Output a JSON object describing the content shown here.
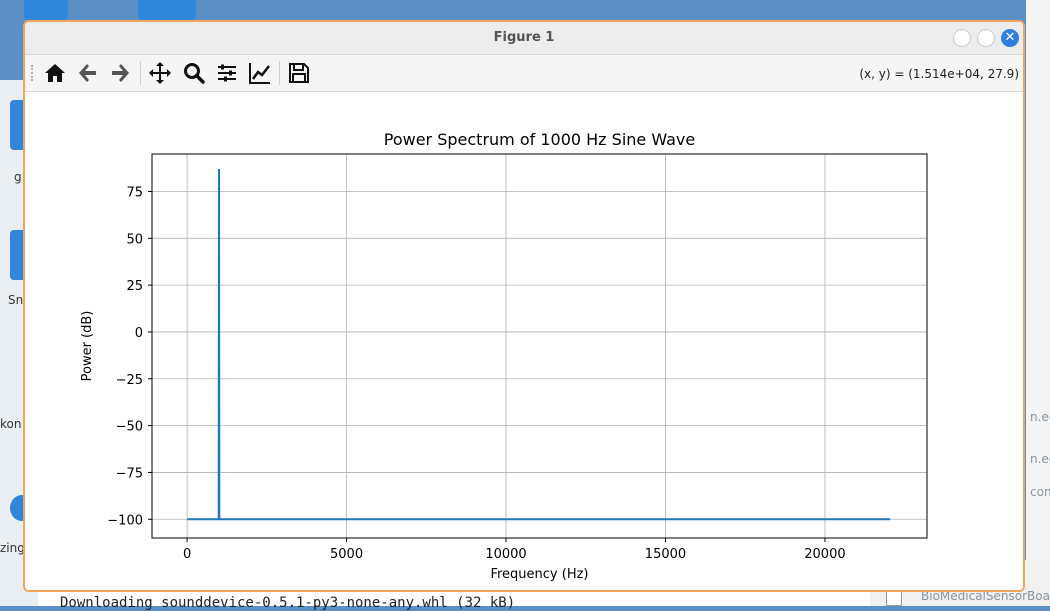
{
  "window": {
    "title": "Figure 1",
    "close_glyph": "✕"
  },
  "toolbar": {
    "buttons": [
      {
        "name": "home-icon",
        "label": "Home"
      },
      {
        "name": "back-icon",
        "label": "Back"
      },
      {
        "name": "forward-icon",
        "label": "Forward"
      },
      {
        "name": "pan-icon",
        "label": "Pan"
      },
      {
        "name": "zoom-icon",
        "label": "Zoom"
      },
      {
        "name": "subplots-icon",
        "label": "Configure subplots"
      },
      {
        "name": "edit-axis-icon",
        "label": "Edit axis"
      },
      {
        "name": "save-icon",
        "label": "Save"
      }
    ],
    "coords": "(x, y) = (1.514e+04, 27.9)"
  },
  "chart_data": {
    "type": "line",
    "title": "Power Spectrum of 1000 Hz Sine Wave",
    "xlabel": "Frequency (Hz)",
    "ylabel": "Power (dB)",
    "xlim": [
      -1100,
      23200
    ],
    "ylim": [
      -110,
      95
    ],
    "xticks": [
      0,
      5000,
      10000,
      15000,
      20000
    ],
    "xtick_labels": [
      "0",
      "5000",
      "10000",
      "15000",
      "20000"
    ],
    "yticks": [
      -100,
      -75,
      -50,
      -25,
      0,
      25,
      50,
      75
    ],
    "ytick_labels": [
      "−100",
      "−75",
      "−50",
      "−25",
      "0",
      "25",
      "50",
      "75"
    ],
    "grid": true,
    "color": "#1f77b4",
    "series": [
      {
        "x": [
          0,
          990,
          1000,
          1010,
          22050
        ],
        "y": [
          -100,
          -100,
          87,
          -100,
          -100
        ]
      }
    ]
  },
  "background": {
    "side_labels": [
      "g",
      "Sn",
      "kon",
      "zing"
    ],
    "right_texts": [
      "n.edu",
      "n.edu",
      "con"
    ],
    "terminal_text": "Downloading sounddevice-0.5.1-py3-none-any.whl (32 kB)",
    "file_label": "BioMedicalSensorBoa"
  }
}
